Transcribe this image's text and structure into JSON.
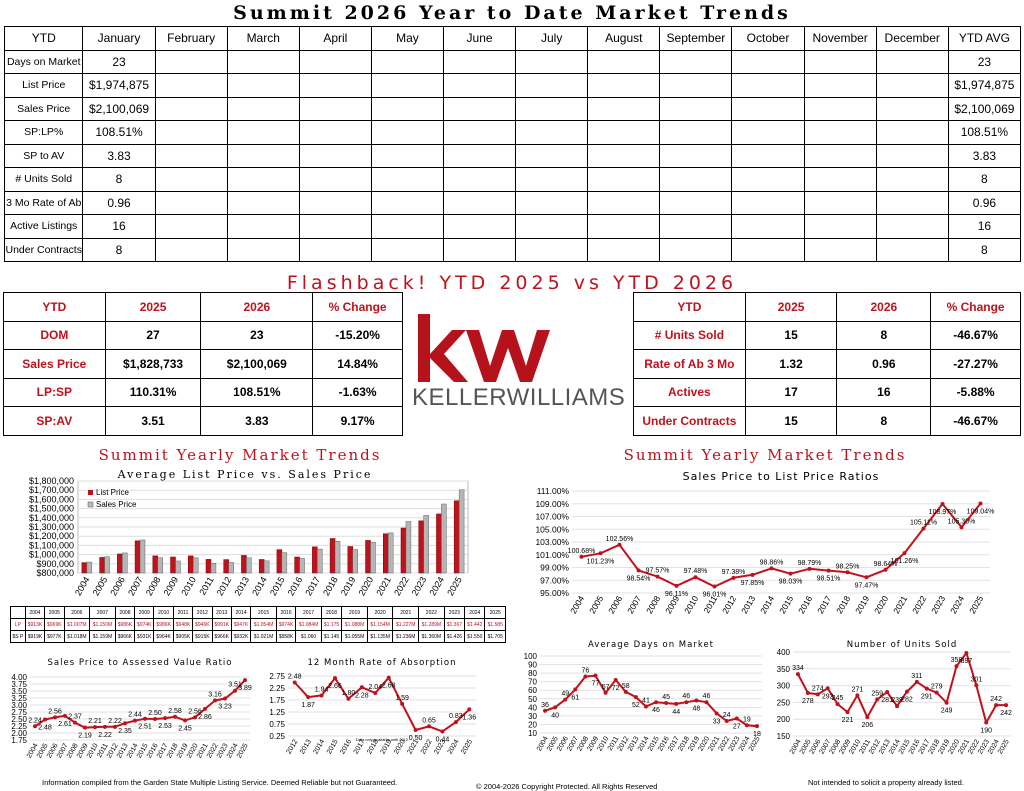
{
  "title": "Summit 2026 Year to Date Market Trends",
  "ytd_table": {
    "headers": [
      "YTD",
      "January",
      "February",
      "March",
      "April",
      "May",
      "June",
      "July",
      "August",
      "September",
      "October",
      "November",
      "December",
      "YTD AVG"
    ],
    "rows": [
      {
        "label": "Days on Market",
        "jan": "23",
        "avg": "23"
      },
      {
        "label": "List Price",
        "jan": "$1,974,875",
        "avg": "$1,974,875"
      },
      {
        "label": "Sales Price",
        "jan": "$2,100,069",
        "avg": "$2,100,069"
      },
      {
        "label": "SP:LP%",
        "jan": "108.51%",
        "avg": "108.51%"
      },
      {
        "label": "SP to AV",
        "jan": "3.83",
        "avg": "3.83"
      },
      {
        "label": "# Units Sold",
        "jan": "8",
        "avg": "8"
      },
      {
        "label": "3 Mo Rate of Ab",
        "jan": "0.96",
        "avg": "0.96"
      },
      {
        "label": "Active Listings",
        "jan": "16",
        "avg": "16"
      },
      {
        "label": "Under Contracts",
        "jan": "8",
        "avg": "8"
      }
    ]
  },
  "flashback_title": "Flashback!  YTD 2025 vs YTD 2026",
  "flash_left": {
    "headers": [
      "YTD",
      "2025",
      "2026",
      "% Change"
    ],
    "rows": [
      [
        "DOM",
        "27",
        "23",
        "-15.20%"
      ],
      [
        "Sales Price",
        "$1,828,733",
        "$2,100,069",
        "14.84%"
      ],
      [
        "LP:SP",
        "110.31%",
        "108.51%",
        "-1.63%"
      ],
      [
        "SP:AV",
        "3.51",
        "3.83",
        "9.17%"
      ]
    ]
  },
  "flash_right": {
    "headers": [
      "YTD",
      "2025",
      "2026",
      "% Change"
    ],
    "rows": [
      [
        "# Units Sold",
        "15",
        "8",
        "-46.67%"
      ],
      [
        "Rate of Ab 3 Mo",
        "1.32",
        "0.96",
        "-27.27%"
      ],
      [
        "Actives",
        "17",
        "16",
        "-5.88%"
      ],
      [
        "Under Contracts",
        "15",
        "8",
        "-46.67%"
      ]
    ]
  },
  "logo": {
    "kw": "kw",
    "brand": "KELLERWILLIAMS",
    "color": "#b5121b"
  },
  "colors": {
    "accent": "#c0121c",
    "grey_bar": "#9a9a9a"
  },
  "section_left": "Summit Yearly Market Trends",
  "section_right": "Summit Yearly Market Trends",
  "chart_data": [
    {
      "type": "bar",
      "title": "Average List Price vs. Sales Price",
      "categories": [
        "2004",
        "2005",
        "2006",
        "2007",
        "2008",
        "2009",
        "2010",
        "2011",
        "2012",
        "2013",
        "2014",
        "2015",
        "2016",
        "2017",
        "2018",
        "2019",
        "2020",
        "2021",
        "2022",
        "2023",
        "2024",
        "2025"
      ],
      "series": [
        {
          "name": "List Price",
          "values": [
            913,
            969,
            1007,
            1150,
            986,
            974,
            986,
            948,
            946,
            991,
            947,
            1054,
            974,
            1084,
            1175,
            1088,
            1154,
            1227,
            1289,
            1367,
            1442,
            1585
          ]
        },
        {
          "name": "Sales Price",
          "values": [
            919,
            977,
            1018,
            1159,
            966,
            931,
            964,
            905,
            915,
            966,
            932,
            1021,
            958,
            1060,
            1145,
            1055,
            1135,
            1236,
            1360,
            1426,
            1550,
            1705
          ]
        }
      ],
      "yticks": [
        "$1,800,000",
        "$1,700,000",
        "$1,600,000",
        "$1,500,000",
        "$1,400,000",
        "$1,300,000",
        "$1,200,000",
        "$1,100,000",
        "$1,000,000",
        "$900,000",
        "$800,000"
      ],
      "ylim": [
        800,
        1800
      ],
      "table": {
        "lp_label": "LP",
        "sp_label": "$S P",
        "lp": [
          "$913K",
          "$969K",
          "$1.007M",
          "$1.150M",
          "$986K",
          "$974K",
          "$986K",
          "$948K",
          "$946K",
          "$991K",
          "$947K",
          "$1.054M",
          "$974K",
          "$1.084M",
          "$1.175",
          "$1.088M",
          "$1.154M",
          "$1.227M",
          "$1.289M",
          "$1.367",
          "$1.442",
          "$1.585"
        ],
        "sp": [
          "$919K",
          "$977K",
          "$1.018M",
          "$1.159M",
          "$966K",
          "$931K",
          "$964K",
          "$905K",
          "$915K",
          "$966K",
          "$932K",
          "$1.021M",
          "$958K",
          "$1.060",
          "$1.145",
          "$1.055M",
          "$1.135M",
          "$1.236M",
          "$1.360M",
          "$1.426",
          "$1.550",
          "$1.705"
        ]
      }
    },
    {
      "type": "line",
      "title": "Sales Price to List Price Ratios",
      "x": [
        "2004",
        "2005",
        "2006",
        "2007",
        "2008",
        "2009",
        "2010",
        "2011",
        "2012",
        "2013",
        "2014",
        "2015",
        "2016",
        "2017",
        "2018",
        "2019",
        "2020",
        "2021",
        "2022",
        "2023",
        "2024",
        "2025"
      ],
      "values": [
        100.68,
        101.23,
        102.56,
        98.54,
        97.57,
        96.11,
        97.48,
        96.01,
        97.38,
        97.85,
        98.86,
        98.03,
        98.79,
        98.51,
        98.25,
        97.47,
        98.64,
        101.26,
        105.11,
        108.97,
        105.3,
        109.04
      ],
      "labels": [
        "100.68%",
        "101.23%",
        "102.56%",
        "98.54%",
        "97.57%",
        "96.11%",
        "97.48%",
        "96.01%",
        "97.38%",
        "97.85%",
        "98.86%",
        "98.03%",
        "98.79%",
        "98.51%",
        "98.25%",
        "97.47%",
        "98.64%",
        "101.26%",
        "105.11%",
        "108.97%",
        "105.30%",
        "109.04%"
      ],
      "yticks": [
        "111.00%",
        "109.00%",
        "107.00%",
        "105.00%",
        "103.00%",
        "101.00%",
        "99.00%",
        "97.00%",
        "95.00%"
      ],
      "ylim": [
        95,
        111
      ]
    },
    {
      "type": "line",
      "title": "Sales Price to Assessed Value Ratio",
      "x": [
        "2004",
        "2005",
        "2006",
        "2007",
        "2008",
        "2009",
        "2010",
        "2011",
        "2012",
        "2013",
        "2014",
        "2015",
        "2016",
        "2017",
        "2018",
        "2019",
        "2020",
        "2021",
        "2022",
        "2023",
        "2024",
        "2025"
      ],
      "values": [
        2.24,
        2.48,
        2.56,
        2.61,
        2.37,
        2.19,
        2.21,
        2.22,
        2.22,
        2.35,
        2.44,
        2.51,
        2.5,
        2.53,
        2.58,
        2.45,
        2.56,
        2.86,
        3.16,
        3.23,
        3.51,
        3.89
      ],
      "labels": [
        "2.24",
        "2.48",
        "2.56",
        "2.61",
        "2.37",
        "2.19",
        "2.21",
        "2.22",
        "2.22",
        "2.35",
        "2.44",
        "2.51",
        "2.50",
        "2.53",
        "2.58",
        "2.45",
        "2.56",
        "2.86",
        "3.16",
        "3.23",
        "3.51",
        "3.89"
      ],
      "yticks": [
        "4.00",
        "3.75",
        "3.50",
        "3.25",
        "3.00",
        "2.75",
        "2.50",
        "2.25",
        "2.00",
        "1.75"
      ],
      "ylim": [
        1.75,
        4.0
      ]
    },
    {
      "type": "line",
      "title": "12 Month Rate of Absorption",
      "note": "Data only available until 2012",
      "x": [
        "2012",
        "2013",
        "2014",
        "2015",
        "2016",
        "2017",
        "2018",
        "2019",
        "2020",
        "2021",
        "2022",
        "2023",
        "2024",
        "2025"
      ],
      "values": [
        2.48,
        1.87,
        1.94,
        2.66,
        1.8,
        2.28,
        2.04,
        2.68,
        1.59,
        0.5,
        0.65,
        0.44,
        0.83,
        1.36
      ],
      "labels": [
        "2.48",
        "1.87",
        "1.94",
        "2.66",
        "1.80",
        "2.28",
        "2.04",
        "2.68",
        "1.59",
        "0.50",
        "0.65",
        "0.44",
        "0.83",
        "1.36"
      ],
      "yticks": [
        "2.75",
        "2.25",
        "1.75",
        "1.25",
        "0.75",
        "0.25"
      ],
      "ylim": [
        0.25,
        2.75
      ]
    },
    {
      "type": "line",
      "title": "Average Days on Market",
      "x": [
        "2004",
        "2005",
        "2006",
        "2007",
        "2008",
        "2009",
        "2010",
        "2011",
        "2012",
        "2013",
        "2014",
        "2015",
        "2016",
        "2017",
        "2018",
        "2019",
        "2020",
        "2021",
        "2022",
        "2023",
        "2024",
        "2025"
      ],
      "values": [
        36,
        40,
        49,
        61,
        76,
        77,
        57,
        72,
        58,
        52,
        41,
        46,
        45,
        44,
        46,
        48,
        46,
        33,
        24,
        27,
        19,
        18
      ],
      "labels": [
        "36",
        "40",
        "49",
        "61",
        "76",
        "77",
        "57",
        "72",
        "58",
        "52",
        "41",
        "46",
        "45",
        "44",
        "46",
        "48",
        "46",
        "33",
        "24",
        "27",
        "19",
        "18"
      ],
      "yticks": [
        "100",
        "90",
        "80",
        "70",
        "60",
        "50",
        "40",
        "30",
        "20",
        "10"
      ],
      "ylim": [
        10,
        100
      ]
    },
    {
      "type": "line",
      "title": "Number of Units Sold",
      "x": [
        "2004",
        "2005",
        "2006",
        "2007",
        "2008",
        "2009",
        "2010",
        "2011",
        "2012",
        "2013",
        "2014",
        "2015",
        "2016",
        "2017",
        "2018",
        "2019",
        "2020",
        "2021",
        "2022",
        "2023",
        "2024",
        "2025"
      ],
      "values": [
        334,
        278,
        274,
        292,
        245,
        221,
        271,
        206,
        259,
        281,
        239,
        282,
        311,
        291,
        279,
        249,
        358,
        397,
        301,
        190,
        242,
        242
      ],
      "labels": [
        "334",
        "278",
        "274",
        "292",
        "245",
        "221",
        "271",
        "206",
        "259",
        "281",
        "239",
        "282",
        "311",
        "291",
        "279",
        "249",
        "358",
        "397",
        "301",
        "190",
        "242",
        "242"
      ],
      "yticks": [
        "400",
        "350",
        "300",
        "250",
        "200",
        "150"
      ],
      "ylim": [
        150,
        400
      ]
    }
  ],
  "footer": {
    "left": "Information compiled from the Garden State Multiple Listing Service.  Deemed Reliable but not Guaranteed.",
    "center": "© 2004-2026 Copyright Protected.  All Rights Reserved",
    "right": "Not intended to solicit a property already listed."
  }
}
